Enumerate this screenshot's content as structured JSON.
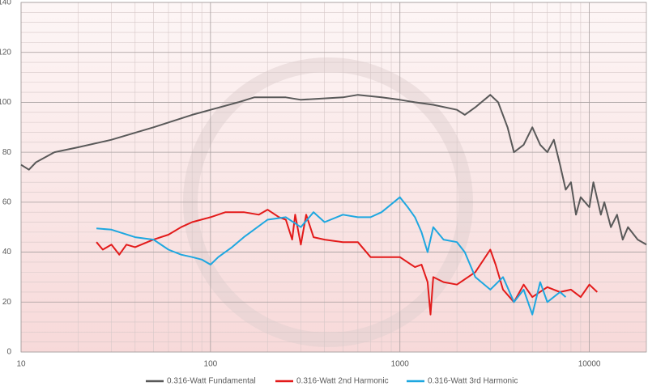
{
  "chart_data": {
    "type": "line",
    "xlog": true,
    "grid": true,
    "legend": "bottom",
    "xlim": [
      10,
      20000
    ],
    "xticks": [
      10,
      100,
      1000,
      10000
    ],
    "ylim": [
      0,
      140
    ],
    "yticks": [
      0,
      20,
      40,
      60,
      80,
      100,
      120,
      140
    ],
    "series": [
      {
        "name": "0.316-Watt Fundamental",
        "color": "#595959",
        "x": [
          10,
          11,
          12,
          15,
          20,
          30,
          50,
          80,
          100,
          140,
          170,
          250,
          300,
          500,
          600,
          800,
          1000,
          1200,
          1500,
          2000,
          2200,
          2500,
          3000,
          3300,
          3700,
          4000,
          4500,
          5000,
          5500,
          6000,
          6500,
          7000,
          7500,
          8000,
          8500,
          9000,
          10000,
          10500,
          11500,
          12000,
          13000,
          14000,
          15000,
          16000,
          18000,
          20000
        ],
        "values": [
          75,
          73,
          76,
          80,
          82,
          85,
          90,
          95,
          97,
          100,
          102,
          102,
          101,
          102,
          103,
          102,
          101,
          100,
          99,
          97,
          95,
          98,
          103,
          100,
          90,
          80,
          83,
          90,
          83,
          80,
          85,
          75,
          65,
          68,
          55,
          62,
          58,
          68,
          55,
          60,
          50,
          55,
          45,
          50,
          45,
          43
        ]
      },
      {
        "name": "0.316-Watt 2nd Harmonic",
        "color": "#e31a1a",
        "x": [
          25,
          27,
          30,
          33,
          36,
          40,
          50,
          60,
          70,
          80,
          100,
          120,
          150,
          180,
          200,
          230,
          250,
          270,
          280,
          300,
          320,
          350,
          400,
          500,
          600,
          700,
          800,
          1000,
          1200,
          1300,
          1400,
          1450,
          1500,
          1700,
          2000,
          2500,
          3000,
          3200,
          3500,
          4000,
          4500,
          5000,
          6000,
          7000,
          8000,
          9000,
          10000,
          11000
        ],
        "values": [
          44,
          41,
          43,
          39,
          43,
          42,
          45,
          47,
          50,
          52,
          54,
          56,
          56,
          55,
          57,
          54,
          53,
          45,
          55,
          43,
          55,
          46,
          45,
          44,
          44,
          38,
          38,
          38,
          34,
          35,
          28,
          15,
          30,
          28,
          27,
          32,
          41,
          35,
          25,
          20,
          27,
          22,
          26,
          24,
          25,
          22,
          27,
          24
        ]
      },
      {
        "name": "0.316-Watt 3rd Harmonic",
        "color": "#1ea7e0",
        "x": [
          25,
          30,
          40,
          50,
          60,
          70,
          80,
          90,
          100,
          110,
          130,
          150,
          200,
          250,
          300,
          350,
          400,
          500,
          600,
          700,
          800,
          1000,
          1100,
          1200,
          1300,
          1400,
          1500,
          1700,
          2000,
          2200,
          2500,
          3000,
          3500,
          4000,
          4500,
          5000,
          5500,
          6000,
          7000,
          7500
        ],
        "values": [
          49.5,
          49,
          46,
          45,
          41,
          39,
          38,
          37,
          35,
          38,
          42,
          46,
          53,
          54,
          50,
          56,
          52,
          55,
          54,
          54,
          56,
          62,
          58,
          54,
          48,
          40,
          50,
          45,
          44,
          40,
          30,
          25,
          30,
          20,
          25,
          15,
          28,
          20,
          24,
          22
        ]
      }
    ]
  }
}
